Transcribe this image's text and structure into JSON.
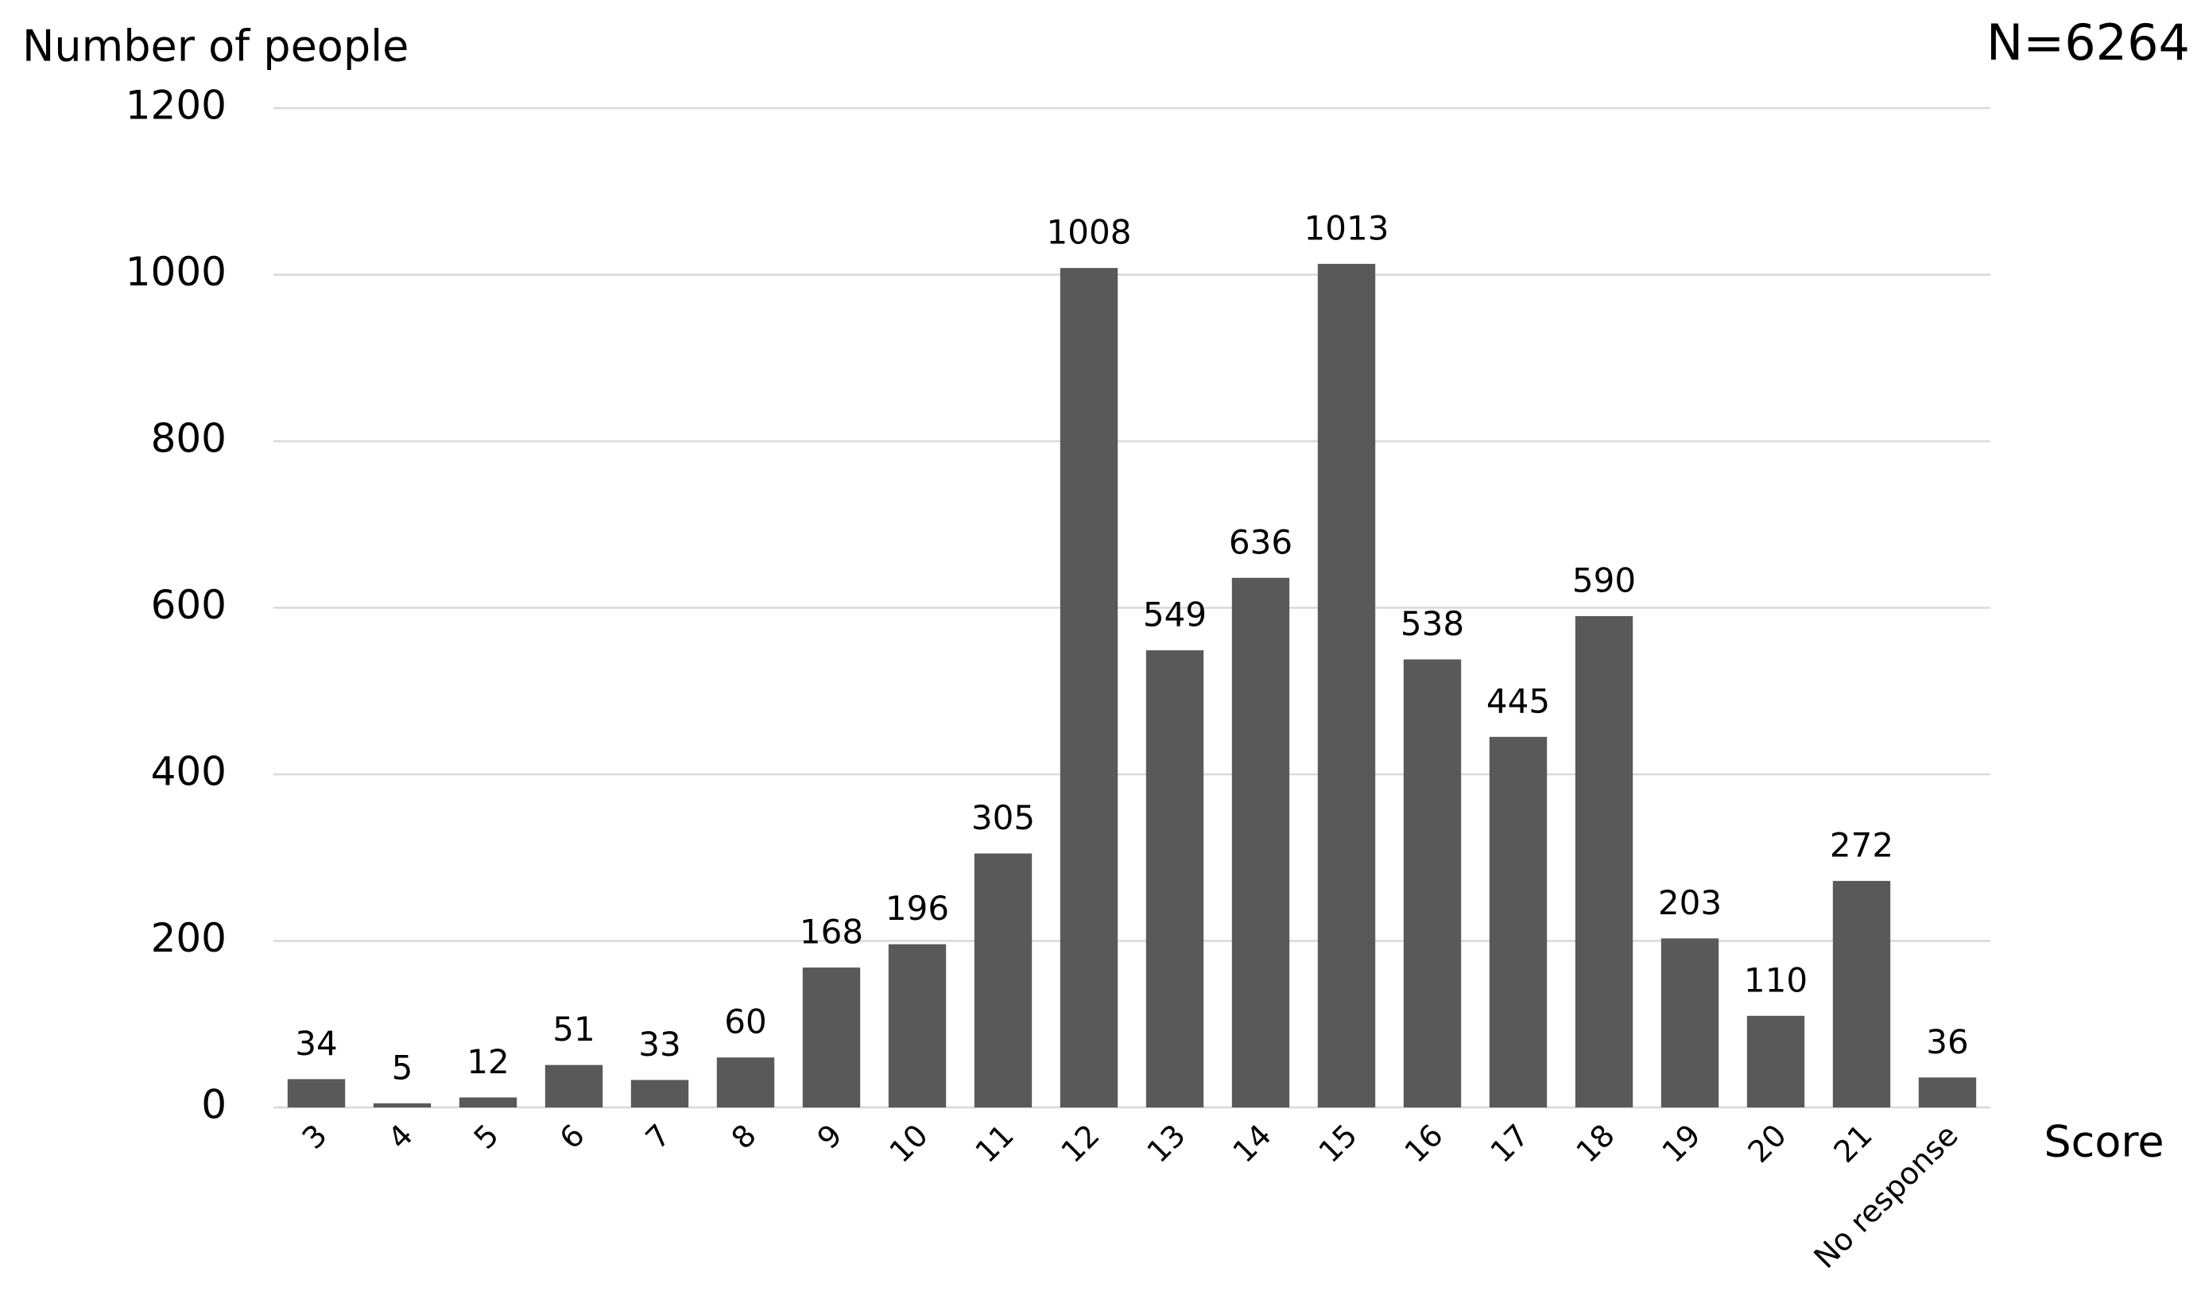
{
  "chart_data": {
    "type": "bar",
    "y_label": "Number of people",
    "x_label": "Score",
    "annotation": "N=6264",
    "categories": [
      "3",
      "4",
      "5",
      "6",
      "7",
      "8",
      "9",
      "10",
      "11",
      "12",
      "13",
      "14",
      "15",
      "16",
      "17",
      "18",
      "19",
      "20",
      "21",
      "No response"
    ],
    "values": [
      34,
      5,
      12,
      51,
      33,
      60,
      168,
      196,
      305,
      1008,
      549,
      636,
      1013,
      538,
      445,
      590,
      203,
      110,
      272,
      36
    ],
    "color": "#595959",
    "ylim": [
      0,
      1200
    ],
    "yticks": [
      0,
      200,
      400,
      600,
      800,
      1000,
      1200
    ],
    "grid": true
  }
}
